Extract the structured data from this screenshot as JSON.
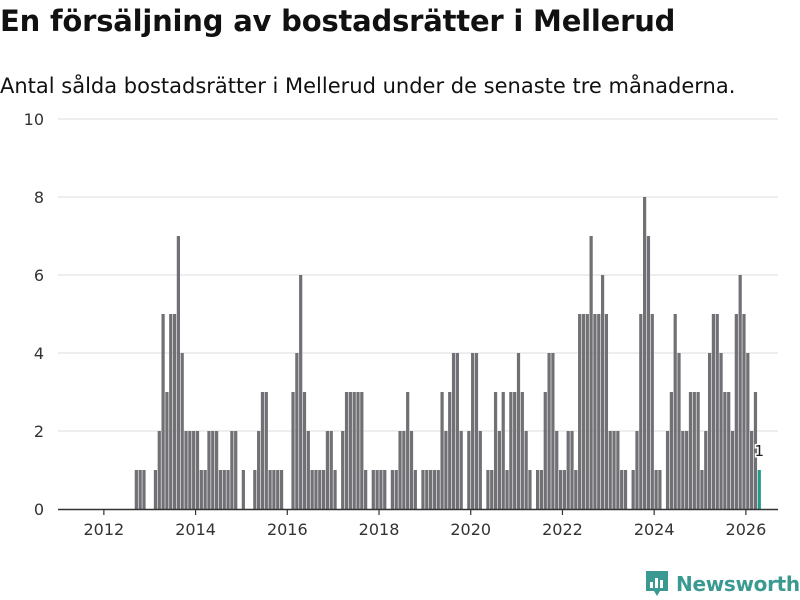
{
  "title": "En försäljning av bostadsrätter i Mellerud",
  "subtitle": "Antal sålda bostadsrätter i Mellerud under de senaste tre månaderna.",
  "brand": "Newsworthy",
  "colors": {
    "bar": "#717075",
    "highlight": "#26998f",
    "brand": "#3a9a92",
    "grid": "#dddddd"
  },
  "chart_data": {
    "type": "bar",
    "title": "En försäljning av bostadsrätter i Mellerud",
    "xlabel": "",
    "ylabel": "",
    "ylim": [
      0,
      10
    ],
    "yticks": [
      0,
      2,
      4,
      6,
      8,
      10
    ],
    "xticks": [
      2012,
      2014,
      2016,
      2018,
      2020,
      2022,
      2024,
      2026
    ],
    "start": {
      "year": 2011,
      "month": 1
    },
    "values": [
      0,
      0,
      0,
      0,
      0,
      0,
      0,
      0,
      0,
      0,
      0,
      0,
      0,
      0,
      0,
      0,
      0,
      0,
      0,
      0,
      1,
      1,
      1,
      0,
      0,
      1,
      2,
      5,
      3,
      5,
      5,
      7,
      4,
      2,
      2,
      2,
      2,
      1,
      1,
      2,
      2,
      2,
      1,
      1,
      1,
      2,
      2,
      0,
      1,
      0,
      0,
      1,
      2,
      3,
      3,
      1,
      1,
      1,
      1,
      0,
      0,
      3,
      4,
      6,
      3,
      2,
      1,
      1,
      1,
      1,
      2,
      2,
      1,
      0,
      2,
      3,
      3,
      3,
      3,
      3,
      1,
      0,
      1,
      1,
      1,
      1,
      0,
      1,
      1,
      2,
      2,
      3,
      2,
      1,
      0,
      1,
      1,
      1,
      1,
      1,
      3,
      2,
      3,
      4,
      4,
      2,
      0,
      2,
      4,
      4,
      2,
      0,
      1,
      1,
      3,
      2,
      3,
      1,
      3,
      3,
      4,
      3,
      2,
      1,
      0,
      1,
      1,
      3,
      4,
      4,
      2,
      1,
      1,
      2,
      2,
      1,
      5,
      5,
      5,
      7,
      5,
      5,
      6,
      5,
      2,
      2,
      2,
      1,
      1,
      0,
      1,
      2,
      5,
      8,
      7,
      5,
      1,
      1,
      0,
      2,
      3,
      5,
      4,
      2,
      2,
      3,
      3,
      3,
      1,
      2,
      4,
      5,
      5,
      4,
      3,
      3,
      2,
      5,
      6,
      5,
      4,
      2,
      3,
      1
    ],
    "highlight_label": "1",
    "highlight_index": 183
  }
}
